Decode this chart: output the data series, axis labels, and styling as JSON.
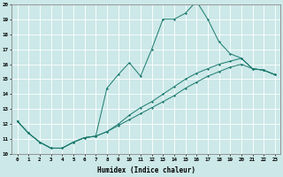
{
  "xlabel": "Humidex (Indice chaleur)",
  "bg_color": "#cce8e8",
  "line_color": "#1a7a6e",
  "grid_color": "#ffffff",
  "xlim": [
    -0.5,
    23.5
  ],
  "ylim": [
    10,
    20
  ],
  "xticks": [
    0,
    1,
    2,
    3,
    4,
    5,
    6,
    7,
    8,
    9,
    10,
    11,
    12,
    13,
    14,
    15,
    16,
    17,
    18,
    19,
    20,
    21,
    22,
    23
  ],
  "yticks": [
    10,
    11,
    12,
    13,
    14,
    15,
    16,
    17,
    18,
    19,
    20
  ],
  "lines": [
    {
      "x": [
        0,
        1,
        2,
        3,
        4,
        5,
        6,
        7,
        8,
        9,
        10,
        11,
        12,
        13,
        14,
        15,
        16,
        17,
        18,
        19,
        20,
        21,
        22,
        23
      ],
      "y": [
        12.2,
        11.4,
        10.8,
        10.4,
        10.4,
        10.8,
        11.1,
        11.2,
        14.4,
        15.3,
        16.1,
        15.2,
        17.0,
        19.0,
        19.0,
        19.4,
        20.2,
        19.0,
        17.5,
        16.7,
        16.4,
        15.7,
        15.6,
        15.3
      ]
    },
    {
      "x": [
        0,
        1,
        2,
        3,
        4,
        5,
        6,
        7,
        8,
        9,
        10,
        11,
        12,
        13,
        14,
        15,
        16,
        17,
        18,
        19,
        20,
        21,
        22,
        23
      ],
      "y": [
        12.2,
        11.4,
        10.8,
        10.4,
        10.4,
        10.8,
        11.1,
        11.2,
        11.5,
        12.0,
        12.6,
        13.1,
        13.5,
        14.0,
        14.5,
        15.0,
        15.4,
        15.7,
        16.0,
        16.2,
        16.4,
        15.7,
        15.6,
        15.3
      ]
    },
    {
      "x": [
        0,
        1,
        2,
        3,
        4,
        5,
        6,
        7,
        8,
        9,
        10,
        11,
        12,
        13,
        14,
        15,
        16,
        17,
        18,
        19,
        20,
        21,
        22,
        23
      ],
      "y": [
        12.2,
        11.4,
        10.8,
        10.4,
        10.4,
        10.8,
        11.1,
        11.2,
        11.5,
        11.9,
        12.3,
        12.7,
        13.1,
        13.5,
        13.9,
        14.4,
        14.8,
        15.2,
        15.5,
        15.8,
        16.0,
        15.7,
        15.6,
        15.3
      ]
    }
  ]
}
